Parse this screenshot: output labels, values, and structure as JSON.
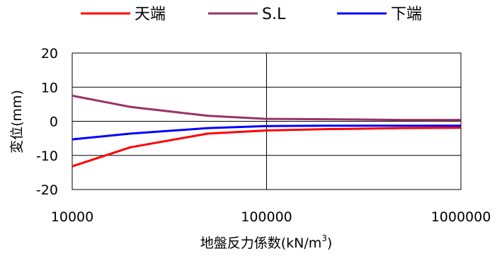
{
  "chart_data": {
    "type": "line",
    "title": "",
    "xlabel": "地盤反力係数(kN/m",
    "xlabel_sup": "3",
    "xlabel_close": ")",
    "ylabel": "変位(mm)",
    "xscale": "log",
    "xlim": [
      10000,
      1000000
    ],
    "ylim": [
      -20,
      20
    ],
    "xticks": [
      10000,
      100000,
      1000000
    ],
    "xtick_labels": [
      "10000",
      "100000",
      "1000000"
    ],
    "yticks": [
      20,
      10,
      0,
      -10,
      -20
    ],
    "ytick_labels": [
      "20",
      "10",
      "0",
      "-10",
      "-20"
    ],
    "legend_position": "top",
    "series": [
      {
        "name": "天端",
        "color": "#ff0000",
        "x": [
          10000,
          20000,
          50000,
          100000,
          200000,
          500000,
          1000000
        ],
        "y": [
          -13.2,
          -7.6,
          -3.6,
          -2.7,
          -2.3,
          -2.0,
          -1.9
        ]
      },
      {
        "name": "S.L",
        "color": "#993366",
        "x": [
          10000,
          20000,
          50000,
          100000,
          200000,
          500000,
          1000000
        ],
        "y": [
          7.5,
          4.2,
          1.6,
          0.7,
          0.6,
          0.4,
          0.4
        ]
      },
      {
        "name": "下端",
        "color": "#0000ff",
        "x": [
          10000,
          20000,
          50000,
          100000,
          200000,
          500000,
          1000000
        ],
        "y": [
          -5.3,
          -3.6,
          -2.0,
          -1.4,
          -1.3,
          -1.3,
          -1.3
        ]
      }
    ]
  }
}
